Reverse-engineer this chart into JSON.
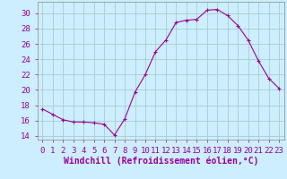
{
  "hours": [
    0,
    1,
    2,
    3,
    4,
    5,
    6,
    7,
    8,
    9,
    10,
    11,
    12,
    13,
    14,
    15,
    16,
    17,
    18,
    19,
    20,
    21,
    22,
    23
  ],
  "values": [
    17.5,
    16.8,
    16.1,
    15.8,
    15.8,
    15.7,
    15.5,
    14.1,
    16.2,
    19.7,
    22.0,
    25.0,
    26.5,
    28.8,
    29.1,
    29.2,
    30.4,
    30.5,
    29.7,
    28.4,
    26.5,
    23.8,
    21.5,
    20.2
  ],
  "line_color": "#990099",
  "marker": "+",
  "marker_size": 3,
  "bg_color": "#cceeff",
  "grid_color": "#aacccc",
  "xlabel": "Windchill (Refroidissement éolien,°C)",
  "xlim": [
    -0.5,
    23.5
  ],
  "ylim": [
    13.5,
    31.5
  ],
  "yticks": [
    14,
    16,
    18,
    20,
    22,
    24,
    26,
    28,
    30
  ],
  "xticks": [
    0,
    1,
    2,
    3,
    4,
    5,
    6,
    7,
    8,
    9,
    10,
    11,
    12,
    13,
    14,
    15,
    16,
    17,
    18,
    19,
    20,
    21,
    22,
    23
  ],
  "tick_color": "#990099",
  "font_size": 6.5,
  "xlabel_fontsize": 7,
  "line_width": 0.8,
  "marker_edge_width": 0.8
}
